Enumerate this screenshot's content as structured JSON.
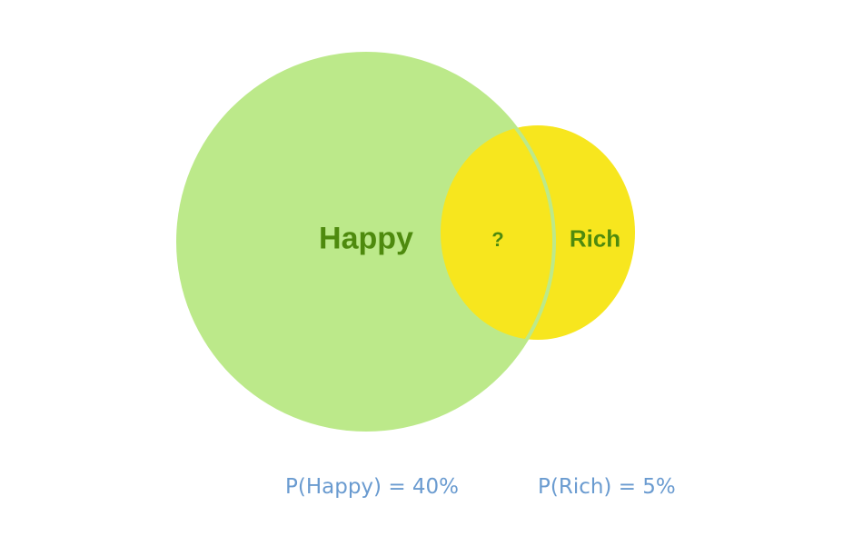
{
  "venn": {
    "sets": [
      {
        "id": "happy",
        "label": "Happy",
        "fill": "#bce98a",
        "text_color": "#4e8a0e"
      },
      {
        "id": "rich",
        "label": "Rich",
        "fill": "#f7e61e",
        "text_color": "#4e8a0e"
      }
    ],
    "intersection": {
      "label": "?",
      "text_color": "#4e8a0e"
    },
    "overlap_outline_color": "#bce98a"
  },
  "probabilities": {
    "happy": "P(Happy) = 40%",
    "rich": "P(Rich) = 5%",
    "text_color": "#6a9bd0"
  }
}
